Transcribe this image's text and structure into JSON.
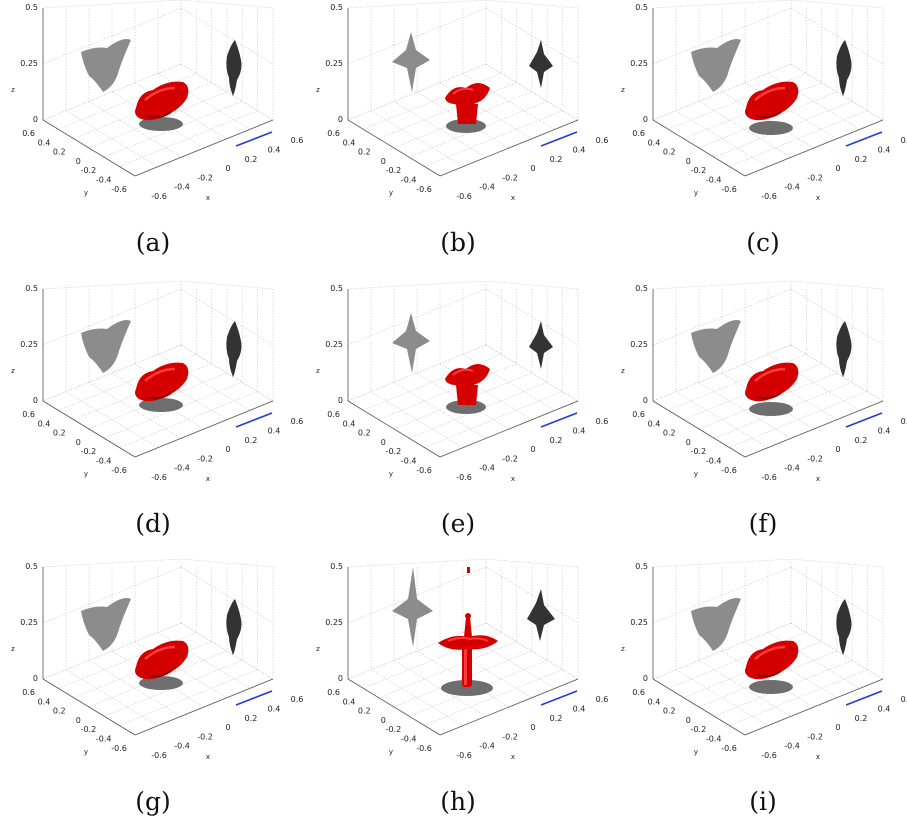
{
  "figure": {
    "z_ticks": [
      "0.5",
      "0.25",
      "0"
    ],
    "y_ticks": [
      "0.6",
      "0.4",
      "0.2",
      "0",
      "-0.2",
      "-0.4",
      "-0.6"
    ],
    "x_ticks": [
      "-0.6",
      "-0.4",
      "-0.2",
      "0",
      "0.2",
      "0.4",
      "0.6"
    ],
    "axis_labels": {
      "x": "x",
      "y": "y",
      "z": "z"
    },
    "colors": {
      "body": "#d40000",
      "body_highlight": "#ff3a3a",
      "body_shadow": "#8a0000",
      "projection_light": "#8c8c8c",
      "projection_dark": "#333333",
      "floor_shadow": "#6e6e6e",
      "marker_line": "#1f3fd6",
      "grid": "#c8c8c8"
    },
    "panels": [
      {
        "label": "(a)",
        "variant": "wide"
      },
      {
        "label": "(b)",
        "variant": "star"
      },
      {
        "label": "(c)",
        "variant": "wide"
      },
      {
        "label": "(d)",
        "variant": "wide"
      },
      {
        "label": "(e)",
        "variant": "star"
      },
      {
        "label": "(f)",
        "variant": "wide"
      },
      {
        "label": "(g)",
        "variant": "wide"
      },
      {
        "label": "(h)",
        "variant": "cross"
      },
      {
        "label": "(i)",
        "variant": "wide"
      }
    ]
  }
}
